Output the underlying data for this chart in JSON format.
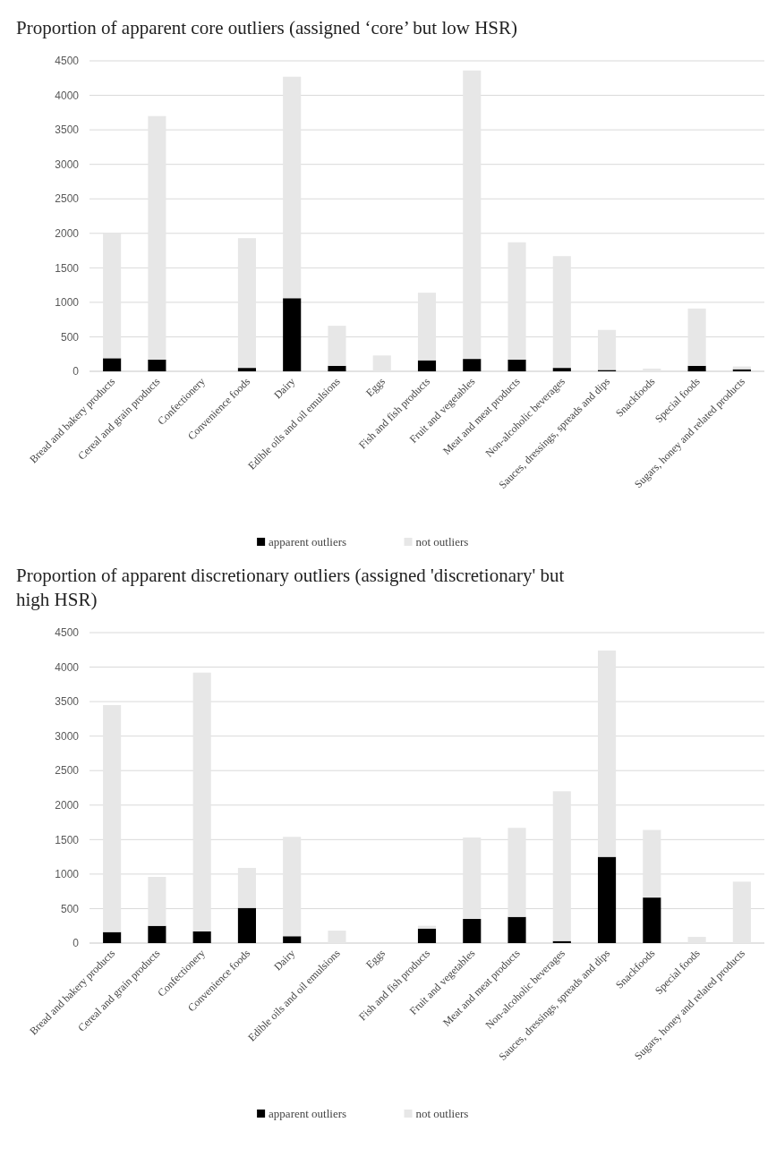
{
  "chart_data": [
    {
      "type": "bar",
      "title": "Proportion of apparent core outliers (assigned ‘core’ but low HSR)",
      "categories": [
        "Bread and bakery products",
        "Cereal and grain products",
        "Confectionery",
        "Convenience foods",
        "Dairy",
        "Edible oils and oil emulsions",
        "Eggs",
        "Fish and fish products",
        "Fruit and vegetables",
        "Meat and meat products",
        "Non-alcoholic beverages",
        "Sauces, dressings, spreads and dips",
        "Snackfoods",
        "Special foods",
        "Sugars, honey and related products"
      ],
      "stacked": true,
      "series": [
        {
          "name": "apparent outliers",
          "color": "#000000",
          "values": [
            190,
            170,
            0,
            50,
            1060,
            80,
            0,
            160,
            180,
            170,
            50,
            20,
            0,
            80,
            30
          ]
        },
        {
          "name": "not outliers",
          "color": "#e7e7e7",
          "values": [
            1810,
            3530,
            0,
            1880,
            3210,
            580,
            230,
            980,
            4180,
            1700,
            1620,
            580,
            40,
            830,
            40
          ]
        }
      ],
      "ylim": [
        0,
        4500
      ],
      "yticks": [
        0,
        500,
        1000,
        1500,
        2000,
        2500,
        3000,
        3500,
        4000,
        4500
      ],
      "grid": "y",
      "legend": "bottom"
    },
    {
      "type": "bar",
      "title": "Proportion of  apparent discretionary outliers (assigned 'discretionary' but high HSR)",
      "categories": [
        "Bread and bakery products",
        "Cereal and grain products",
        "Confectionery",
        "Convenience foods",
        "Dairy",
        "Edible oils and oil emulsions",
        "Eggs",
        "Fish and fish products",
        "Fruit and vegetables",
        "Meat and meat products",
        "Non-alcoholic beverages",
        "Sauces, dressings, spreads and dips",
        "Snackfoods",
        "Special foods",
        "Sugars, honey and related products"
      ],
      "stacked": true,
      "series": [
        {
          "name": "apparent outliers",
          "color": "#000000",
          "values": [
            160,
            250,
            170,
            510,
            100,
            0,
            0,
            210,
            350,
            380,
            30,
            1250,
            660,
            0,
            0
          ]
        },
        {
          "name": "not outliers",
          "color": "#e7e7e7",
          "values": [
            3290,
            710,
            3750,
            580,
            1440,
            180,
            0,
            40,
            1180,
            1290,
            2170,
            2990,
            980,
            90,
            890
          ]
        }
      ],
      "ylim": [
        0,
        4500
      ],
      "yticks": [
        0,
        500,
        1000,
        1500,
        2000,
        2500,
        3000,
        3500,
        4000,
        4500
      ],
      "grid": "y",
      "legend": "bottom"
    }
  ]
}
